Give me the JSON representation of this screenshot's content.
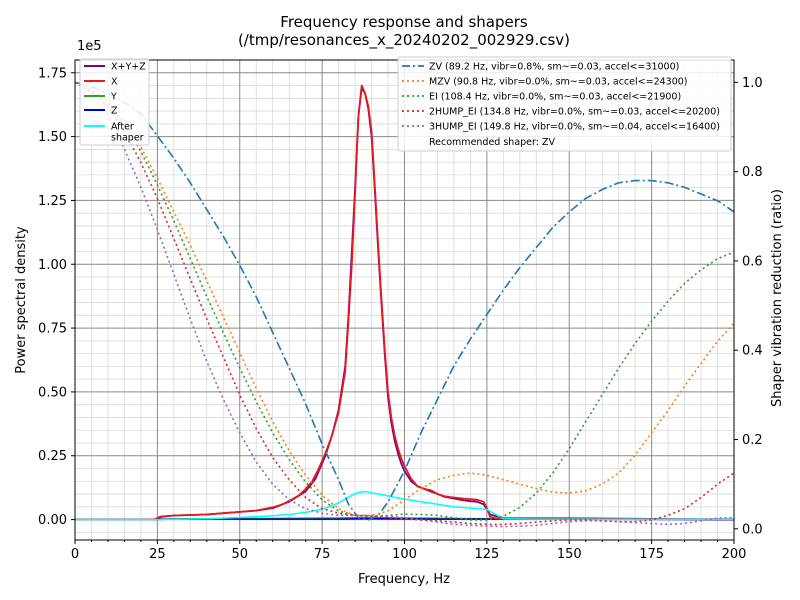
{
  "chart_data": {
    "type": "line",
    "title": "Frequency response and shapers",
    "subtitle": "(/tmp/resonances_x_20240202_002929.csv)",
    "xlabel": "Frequency, Hz",
    "ylabel": "Power spectral density",
    "y2label": "Shaper vibration reduction (ratio)",
    "y_scale_label": "1e5",
    "xlim": [
      0,
      200
    ],
    "ylim": [
      -0.08,
      1.8
    ],
    "y2lim": [
      -0.025,
      1.05
    ],
    "x_ticks": [
      0,
      25,
      50,
      75,
      100,
      125,
      150,
      175,
      200
    ],
    "x_tick_labels": [
      "0",
      "25",
      "50",
      "75",
      "100",
      "125",
      "150",
      "175",
      "200"
    ],
    "y_ticks": [
      0,
      0.25,
      0.5,
      0.75,
      1.0,
      1.25,
      1.5,
      1.75
    ],
    "y_tick_labels": [
      "0.00",
      "0.25",
      "0.50",
      "0.75",
      "1.00",
      "1.25",
      "1.50",
      "1.75"
    ],
    "y2_ticks": [
      0,
      0.2,
      0.4,
      0.6,
      0.8,
      1.0
    ],
    "y2_tick_labels": [
      "0.0",
      "0.2",
      "0.4",
      "0.6",
      "0.8",
      "1.0"
    ],
    "grid": true,
    "legend_left": [
      {
        "label": "X+Y+Z",
        "color": "#800080"
      },
      {
        "label": "X",
        "color": "#e41a1c"
      },
      {
        "label": "Y",
        "color": "#2ca02c"
      },
      {
        "label": "Z",
        "color": "#0000cd"
      },
      {
        "label": "After\nshaper",
        "color": "#00ffff"
      }
    ],
    "legend_right": [
      {
        "label": "ZV (89.2 Hz, vibr=0.8%, sm~=0.03, accel<=31000)",
        "color": "#1f77b4",
        "dash": "dashdot"
      },
      {
        "label": "MZV (90.8 Hz, vibr=0.0%, sm~=0.03, accel<=24300)",
        "color": "#ff7f0e",
        "dash": "dot"
      },
      {
        "label": "EI (108.4 Hz, vibr=0.0%, sm~=0.03, accel<=21900)",
        "color": "#2ca02c",
        "dash": "dot"
      },
      {
        "label": "2HUMP_EI (134.8 Hz, vibr=0.0%, sm~=0.03, accel<=20200)",
        "color": "#d62728",
        "dash": "dot"
      },
      {
        "label": "3HUMP_EI (149.8 Hz, vibr=0.0%, sm~=0.04, accel<=16400)",
        "color": "#9467bd",
        "dash": "dot"
      }
    ],
    "recommended_label": "Recommended shaper: ZV",
    "series": [
      {
        "name": "X+Y+Z",
        "axis": "left",
        "color": "#800080",
        "width": 1.8,
        "x": [
          0,
          25,
          26,
          30,
          40,
          50,
          55,
          60,
          65,
          70,
          73,
          76,
          78,
          80,
          82,
          83,
          84,
          85,
          86,
          87,
          88,
          89,
          90,
          91,
          92,
          93,
          94,
          95,
          96,
          97,
          98,
          99,
          100,
          102,
          104,
          106,
          108,
          110,
          112,
          114,
          116,
          118,
          120,
          122,
          124,
          126,
          130,
          140,
          150,
          200
        ],
        "y": [
          0,
          0,
          0.01,
          0.016,
          0.02,
          0.03,
          0.035,
          0.045,
          0.07,
          0.11,
          0.16,
          0.25,
          0.33,
          0.43,
          0.6,
          0.8,
          1.05,
          1.3,
          1.58,
          1.69,
          1.67,
          1.61,
          1.5,
          1.29,
          1.06,
          0.85,
          0.65,
          0.48,
          0.38,
          0.31,
          0.26,
          0.22,
          0.19,
          0.15,
          0.13,
          0.12,
          0.11,
          0.1,
          0.09,
          0.085,
          0.08,
          0.075,
          0.072,
          0.07,
          0.06,
          0.02,
          0.005,
          0.005,
          0.005,
          0.0
        ]
      },
      {
        "name": "Y",
        "axis": "left",
        "color": "#2ca02c",
        "width": 1.5,
        "x": [
          0,
          25,
          30,
          50,
          80,
          90,
          100,
          110,
          120,
          125,
          130,
          150,
          200
        ],
        "y": [
          0,
          0,
          0.003,
          0.004,
          0.006,
          0.008,
          0.006,
          0.005,
          0.004,
          0.003,
          0.002,
          0.002,
          0.001
        ]
      },
      {
        "name": "Z",
        "axis": "left",
        "color": "#0000cd",
        "width": 1.5,
        "x": [
          0,
          25,
          26,
          50,
          80,
          88,
          95,
          110,
          125,
          130,
          150,
          200
        ],
        "y": [
          0,
          0,
          0.002,
          0.002,
          0.002,
          0.004,
          0.003,
          0.002,
          0.002,
          0.001,
          0.001,
          0.0
        ]
      },
      {
        "name": "X",
        "axis": "left",
        "color": "#e41a1c",
        "width": 1.8,
        "x": [
          0,
          24,
          26,
          30,
          35,
          40,
          45,
          50,
          55,
          60,
          63,
          66,
          68,
          70,
          72,
          74,
          76,
          78,
          80,
          82,
          83,
          84,
          85,
          86,
          87,
          88,
          89,
          90,
          91,
          92,
          93,
          94,
          95,
          96,
          97,
          98,
          99,
          100,
          102,
          104,
          106,
          108,
          110,
          112,
          114,
          116,
          118,
          120,
          122,
          124,
          125,
          126,
          128,
          130,
          140,
          150,
          160,
          170,
          180,
          190,
          200
        ],
        "y": [
          0,
          0,
          0.012,
          0.016,
          0.018,
          0.02,
          0.025,
          0.03,
          0.035,
          0.048,
          0.06,
          0.08,
          0.095,
          0.12,
          0.15,
          0.2,
          0.26,
          0.33,
          0.42,
          0.58,
          0.78,
          1.0,
          1.28,
          1.58,
          1.7,
          1.67,
          1.62,
          1.52,
          1.31,
          1.08,
          0.87,
          0.67,
          0.5,
          0.4,
          0.33,
          0.28,
          0.24,
          0.21,
          0.16,
          0.13,
          0.12,
          0.115,
          0.1,
          0.092,
          0.088,
          0.085,
          0.082,
          0.08,
          0.078,
          0.07,
          0.045,
          0.01,
          0.004,
          0.003,
          0.003,
          0.003,
          0.003,
          0.002,
          0.002,
          0.002,
          0.002
        ]
      },
      {
        "name": "After shaper",
        "axis": "left",
        "color": "#00ffff",
        "width": 1.5,
        "x": [
          0,
          25,
          40,
          50,
          60,
          65,
          70,
          75,
          80,
          82,
          84,
          86,
          88,
          90,
          92,
          94,
          96,
          98,
          100,
          105,
          110,
          115,
          120,
          125,
          130,
          140,
          150,
          160,
          175,
          200
        ],
        "y": [
          0,
          0,
          0.003,
          0.008,
          0.015,
          0.02,
          0.028,
          0.04,
          0.065,
          0.08,
          0.095,
          0.106,
          0.11,
          0.105,
          0.1,
          0.095,
          0.09,
          0.085,
          0.08,
          0.07,
          0.06,
          0.05,
          0.045,
          0.04,
          0.003,
          0.002,
          0.002,
          0.001,
          0.001,
          0.001
        ]
      },
      {
        "name": "ZV",
        "axis": "right",
        "color": "#1f77b4",
        "width": 1.6,
        "dash": "9,3,2,3",
        "x": [
          0,
          5,
          10,
          15,
          20,
          25,
          30,
          35,
          40,
          45,
          50,
          55,
          60,
          65,
          70,
          75,
          80,
          83,
          86,
          89,
          92,
          95,
          100,
          105,
          110,
          115,
          120,
          125,
          130,
          135,
          140,
          145,
          150,
          155,
          160,
          165,
          170,
          175,
          180,
          185,
          190,
          195,
          200
        ],
        "y": [
          1.0,
          0.99,
          0.975,
          0.955,
          0.93,
          0.88,
          0.83,
          0.775,
          0.715,
          0.655,
          0.59,
          0.52,
          0.44,
          0.36,
          0.28,
          0.19,
          0.11,
          0.055,
          0.025,
          0.02,
          0.03,
          0.06,
          0.13,
          0.215,
          0.29,
          0.365,
          0.425,
          0.48,
          0.535,
          0.585,
          0.63,
          0.675,
          0.71,
          0.74,
          0.76,
          0.775,
          0.78,
          0.78,
          0.775,
          0.765,
          0.75,
          0.735,
          0.71
        ]
      },
      {
        "name": "MZV",
        "axis": "right",
        "color": "#ff7f0e",
        "width": 1.6,
        "dash": "2,3",
        "x": [
          0,
          5,
          10,
          15,
          20,
          25,
          30,
          35,
          40,
          45,
          50,
          55,
          60,
          65,
          70,
          75,
          80,
          85,
          90,
          95,
          100,
          105,
          110,
          115,
          120,
          125,
          130,
          135,
          140,
          145,
          150,
          155,
          160,
          165,
          170,
          175,
          180,
          185,
          190,
          195,
          200
        ],
        "y": [
          1.0,
          0.985,
          0.955,
          0.91,
          0.855,
          0.785,
          0.71,
          0.635,
          0.555,
          0.475,
          0.395,
          0.315,
          0.24,
          0.175,
          0.12,
          0.075,
          0.045,
          0.03,
          0.03,
          0.04,
          0.065,
          0.09,
          0.11,
          0.12,
          0.125,
          0.12,
          0.11,
          0.1,
          0.09,
          0.082,
          0.08,
          0.085,
          0.1,
          0.125,
          0.165,
          0.215,
          0.265,
          0.32,
          0.37,
          0.42,
          0.46
        ]
      },
      {
        "name": "EI",
        "axis": "right",
        "color": "#2ca02c",
        "width": 1.6,
        "dash": "2,3",
        "x": [
          0,
          5,
          10,
          15,
          20,
          25,
          30,
          35,
          40,
          45,
          50,
          55,
          60,
          65,
          70,
          75,
          80,
          85,
          90,
          95,
          100,
          105,
          110,
          115,
          120,
          125,
          130,
          135,
          140,
          145,
          150,
          155,
          160,
          165,
          170,
          175,
          180,
          185,
          190,
          195,
          200
        ],
        "y": [
          1.0,
          0.985,
          0.955,
          0.905,
          0.845,
          0.77,
          0.69,
          0.605,
          0.52,
          0.44,
          0.36,
          0.285,
          0.215,
          0.155,
          0.105,
          0.065,
          0.04,
          0.03,
          0.028,
          0.03,
          0.033,
          0.032,
          0.03,
          0.025,
          0.02,
          0.02,
          0.028,
          0.048,
          0.08,
          0.125,
          0.18,
          0.24,
          0.3,
          0.36,
          0.415,
          0.465,
          0.51,
          0.55,
          0.58,
          0.605,
          0.62
        ]
      },
      {
        "name": "2HUMP_EI",
        "axis": "right",
        "color": "#d62728",
        "width": 1.6,
        "dash": "2,3",
        "x": [
          0,
          5,
          10,
          15,
          20,
          25,
          30,
          35,
          40,
          45,
          50,
          55,
          60,
          65,
          70,
          75,
          80,
          85,
          90,
          95,
          100,
          105,
          110,
          115,
          120,
          125,
          130,
          135,
          140,
          145,
          150,
          155,
          160,
          165,
          170,
          175,
          180,
          185,
          190,
          195,
          200
        ],
        "y": [
          1.0,
          0.98,
          0.945,
          0.89,
          0.82,
          0.74,
          0.65,
          0.56,
          0.47,
          0.385,
          0.3,
          0.225,
          0.16,
          0.11,
          0.07,
          0.045,
          0.035,
          0.03,
          0.028,
          0.025,
          0.022,
          0.02,
          0.018,
          0.015,
          0.012,
          0.01,
          0.01,
          0.012,
          0.015,
          0.018,
          0.02,
          0.02,
          0.018,
          0.016,
          0.016,
          0.02,
          0.03,
          0.045,
          0.07,
          0.1,
          0.125
        ]
      },
      {
        "name": "3HUMP_EI",
        "axis": "right",
        "color": "#9467bd",
        "width": 1.6,
        "dash": "2,3",
        "x": [
          0,
          5,
          10,
          15,
          20,
          25,
          30,
          35,
          40,
          45,
          50,
          55,
          60,
          65,
          70,
          75,
          80,
          85,
          90,
          95,
          100,
          105,
          110,
          115,
          120,
          125,
          130,
          135,
          140,
          145,
          150,
          155,
          160,
          165,
          170,
          175,
          180,
          185,
          190,
          195,
          200
        ],
        "y": [
          1.0,
          0.975,
          0.925,
          0.85,
          0.765,
          0.67,
          0.57,
          0.47,
          0.375,
          0.29,
          0.215,
          0.15,
          0.1,
          0.065,
          0.045,
          0.035,
          0.03,
          0.03,
          0.03,
          0.028,
          0.025,
          0.02,
          0.015,
          0.01,
          0.008,
          0.006,
          0.005,
          0.006,
          0.008,
          0.012,
          0.016,
          0.018,
          0.018,
          0.016,
          0.014,
          0.012,
          0.01,
          0.012,
          0.018,
          0.024,
          0.025
        ]
      }
    ]
  }
}
